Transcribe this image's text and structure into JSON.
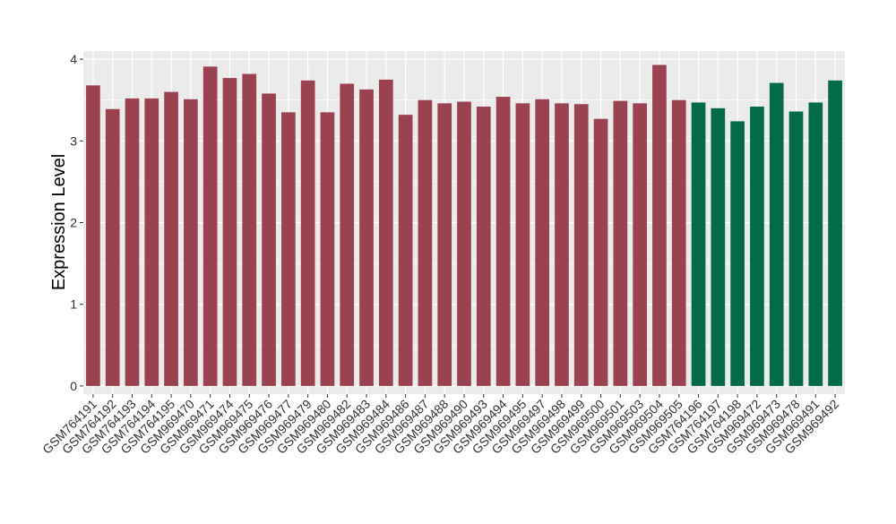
{
  "chart_data": {
    "type": "bar",
    "title": "",
    "xlabel": "",
    "ylabel": "Expression Level",
    "ylim": [
      -0.1,
      4.1
    ],
    "yticks": [
      0,
      1,
      2,
      3,
      4
    ],
    "grid": true,
    "categories": [
      "GSM764191",
      "GSM764192",
      "GSM764193",
      "GSM764194",
      "GSM764195",
      "GSM969470",
      "GSM969471",
      "GSM969474",
      "GSM969475",
      "GSM969476",
      "GSM969477",
      "GSM969479",
      "GSM969480",
      "GSM969482",
      "GSM969483",
      "GSM969484",
      "GSM969486",
      "GSM969487",
      "GSM969488",
      "GSM969490",
      "GSM969493",
      "GSM969494",
      "GSM969495",
      "GSM969497",
      "GSM969498",
      "GSM969499",
      "GSM969500",
      "GSM969501",
      "GSM969503",
      "GSM969504",
      "GSM969505",
      "GSM764196",
      "GSM764197",
      "GSM764198",
      "GSM969472",
      "GSM969473",
      "GSM969478",
      "GSM969491",
      "GSM969492"
    ],
    "values": [
      3.68,
      3.39,
      3.52,
      3.52,
      3.6,
      3.51,
      3.91,
      3.77,
      3.82,
      3.58,
      3.35,
      3.74,
      3.35,
      3.7,
      3.63,
      3.75,
      3.32,
      3.5,
      3.46,
      3.48,
      3.42,
      3.54,
      3.46,
      3.51,
      3.46,
      3.45,
      3.27,
      3.49,
      3.46,
      3.93,
      3.5,
      3.47,
      3.4,
      3.24,
      3.42,
      3.71,
      3.36,
      3.47,
      3.74
    ],
    "bar_colors": [
      "#9a4250",
      "#9a4250",
      "#9a4250",
      "#9a4250",
      "#9a4250",
      "#9a4250",
      "#9a4250",
      "#9a4250",
      "#9a4250",
      "#9a4250",
      "#9a4250",
      "#9a4250",
      "#9a4250",
      "#9a4250",
      "#9a4250",
      "#9a4250",
      "#9a4250",
      "#9a4250",
      "#9a4250",
      "#9a4250",
      "#9a4250",
      "#9a4250",
      "#9a4250",
      "#9a4250",
      "#9a4250",
      "#9a4250",
      "#9a4250",
      "#9a4250",
      "#9a4250",
      "#9a4250",
      "#9a4250",
      "#046b47",
      "#046b47",
      "#046b47",
      "#046b47",
      "#046b47",
      "#046b47",
      "#046b47",
      "#046b47"
    ],
    "panel_background": "#ebebeb",
    "grid_color": "#ffffff"
  }
}
